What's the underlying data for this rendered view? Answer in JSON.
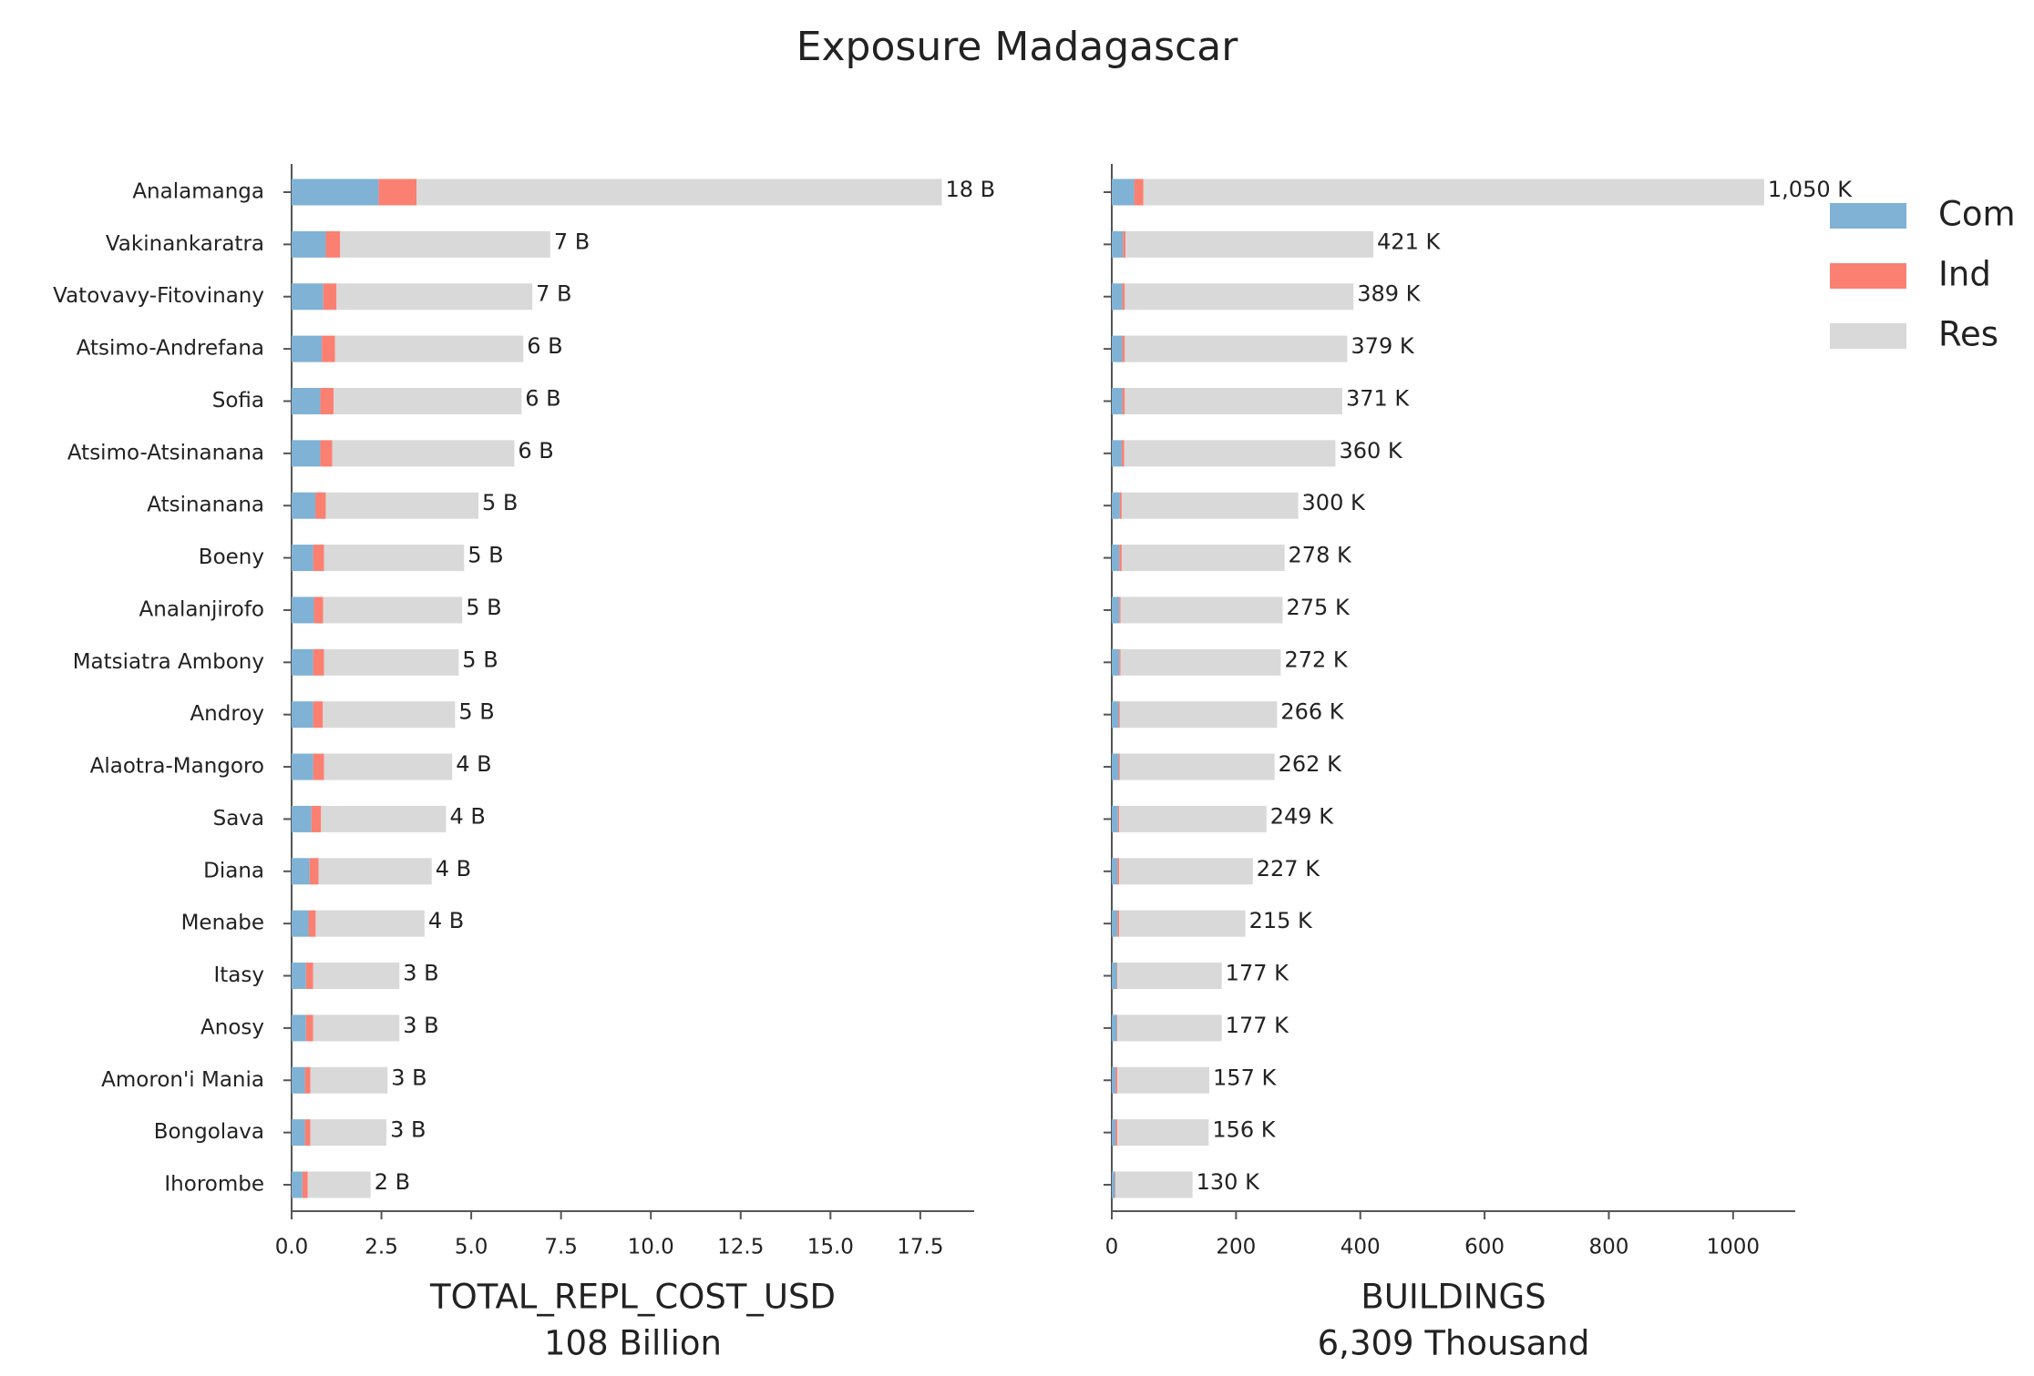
{
  "title": "Exposure Madagascar",
  "chart_data": [
    {
      "type": "bar",
      "orientation": "horizontal",
      "stacked": true,
      "xlabel": [
        "TOTAL_REPL_COST_USD",
        "108 Billion"
      ],
      "categories": [
        "Analamanga",
        "Vakinankaratra",
        "Vatovavy-Fitovinany",
        "Atsimo-Andrefana",
        "Sofia",
        "Atsimo-Atsinanana",
        "Atsinanana",
        "Boeny",
        "Analanjirofo",
        "Matsiatra Ambony",
        "Androy",
        "Alaotra-Mangoro",
        "Sava",
        "Diana",
        "Menabe",
        "Itasy",
        "Anosy",
        "Amoron'i Mania",
        "Bongolava",
        "Ihorombe"
      ],
      "series": [
        {
          "color": "#7fb2d5",
          "values": [
            2.42,
            0.95,
            0.88,
            0.84,
            0.8,
            0.8,
            0.66,
            0.6,
            0.62,
            0.6,
            0.6,
            0.6,
            0.55,
            0.5,
            0.47,
            0.4,
            0.4,
            0.37,
            0.37,
            0.3
          ]
        },
        {
          "color": "#fa8072",
          "values": [
            1.06,
            0.4,
            0.37,
            0.37,
            0.37,
            0.33,
            0.29,
            0.3,
            0.26,
            0.3,
            0.27,
            0.3,
            0.27,
            0.25,
            0.2,
            0.2,
            0.2,
            0.15,
            0.15,
            0.15
          ]
        },
        {
          "color": "#d9d9d9",
          "values": [
            14.62,
            5.85,
            5.45,
            5.24,
            5.23,
            5.07,
            4.25,
            3.9,
            3.87,
            3.75,
            3.68,
            3.57,
            3.48,
            3.15,
            3.03,
            2.4,
            2.4,
            2.15,
            2.12,
            1.75
          ]
        }
      ],
      "totals": {
        "values": [
          18.1,
          7.2,
          6.7,
          6.45,
          6.4,
          6.2,
          5.2,
          4.8,
          4.75,
          4.65,
          4.55,
          4.47,
          4.3,
          3.9,
          3.7,
          3.0,
          3.0,
          2.67,
          2.64,
          2.2
        ],
        "value_labels": [
          "18 B",
          "7 B",
          "7 B",
          "6 B",
          "6 B",
          "6 B",
          "5 B",
          "5 B",
          "5 B",
          "5 B",
          "5 B",
          "4 B",
          "4 B",
          "4 B",
          "4 B",
          "3 B",
          "3 B",
          "3 B",
          "3 B",
          "2 B"
        ]
      },
      "xlim": [
        0,
        19
      ],
      "xticks": [
        {
          "value": 0,
          "label": "0.0"
        },
        2.5,
        {
          "value": 5,
          "label": "5.0"
        },
        7.5,
        {
          "value": 10,
          "label": "10.0"
        },
        12.5,
        {
          "value": 15,
          "label": "15.0"
        },
        17.5
      ]
    },
    {
      "type": "bar",
      "orientation": "horizontal",
      "stacked": true,
      "xlabel": [
        "BUILDINGS",
        "6,309 Thousand"
      ],
      "series": [
        {
          "name": "Com",
          "color": "#7fb2d5",
          "values": [
            36,
            18,
            17,
            17,
            17,
            16,
            13,
            12,
            12,
            12,
            11,
            11,
            10,
            9,
            9,
            8,
            8,
            6,
            6,
            5
          ]
        },
        {
          "name": "Ind",
          "color": "#fa8072",
          "values": [
            15,
            4,
            4,
            4,
            4,
            4,
            3,
            4,
            2,
            2,
            2,
            2,
            2,
            3,
            3,
            1,
            1,
            3,
            3,
            1
          ]
        },
        {
          "name": "Res",
          "color": "#d9d9d9",
          "values": [
            999,
            399,
            368,
            358,
            350,
            340,
            284,
            262,
            261,
            258,
            253,
            249,
            237,
            215,
            203,
            168,
            168,
            148,
            147,
            124
          ]
        }
      ],
      "totals": {
        "values": [
          1050,
          421,
          389,
          379,
          371,
          360,
          300,
          278,
          275,
          272,
          266,
          262,
          249,
          227,
          215,
          177,
          177,
          157,
          156,
          130
        ],
        "value_labels": [
          "1,050 K",
          "421 K",
          "389 K",
          "379 K",
          "371 K",
          "360 K",
          "300 K",
          "278 K",
          "275 K",
          "272 K",
          "266 K",
          "262 K",
          "249 K",
          "227 K",
          "215 K",
          "177 K",
          "177 K",
          "157 K",
          "156 K",
          "130 K"
        ]
      },
      "xlim": [
        0,
        1100
      ],
      "xticks": [
        0,
        200,
        400,
        600,
        800,
        1000
      ],
      "legend": "upper right"
    }
  ]
}
